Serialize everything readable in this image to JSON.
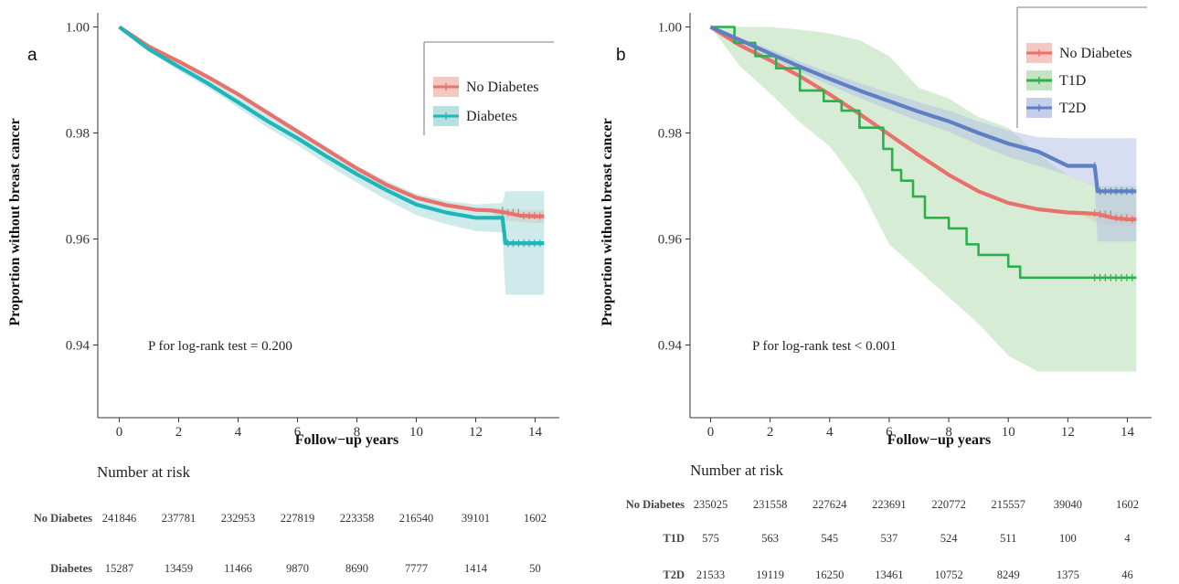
{
  "colors": {
    "no_diabetes": "#E8716B",
    "no_diabetes_band": "#F2B9B2",
    "diabetes": "#1FB6B8",
    "diabetes_band": "#A7D8D9",
    "t1d": "#2DB04B",
    "t1d_band": "#B4DDB0",
    "t2d": "#5E7FC4",
    "t2d_band": "#B6C3E6"
  },
  "chart_data": [
    {
      "type": "line",
      "panel_label": "a",
      "xlabel": "Follow−up years",
      "ylabel": "Proportion without breast cancer",
      "xlim": [
        -0.6,
        15.6
      ],
      "ylim": [
        0.9318,
        1.0025
      ],
      "xticks": [
        0,
        2,
        4,
        6,
        8,
        10,
        12,
        14
      ],
      "xtick_labels": [
        "0",
        "2",
        "4",
        "6",
        "8",
        "10",
        "12",
        "14"
      ],
      "yticks": [
        0.94,
        0.96,
        0.98,
        1.0
      ],
      "ytick_labels": [
        "0.94",
        "0.96",
        "0.98",
        "1.00"
      ],
      "annotation": "P for log-rank test = 0.200",
      "legend_position": "top-right",
      "series": [
        {
          "name": "No Diabetes",
          "color_key": "no_diabetes",
          "x": [
            0,
            1,
            2,
            3,
            4,
            5,
            6,
            7,
            8,
            9,
            10,
            11,
            12,
            12.5,
            13,
            13.5,
            14,
            14.3
          ],
          "y": [
            1.0,
            0.9963,
            0.9935,
            0.9905,
            0.9873,
            0.9838,
            0.9803,
            0.9768,
            0.9733,
            0.9702,
            0.9678,
            0.9664,
            0.9655,
            0.9654,
            0.965,
            0.9644,
            0.9643,
            0.9643
          ],
          "band_upper": [
            1.0,
            0.9965,
            0.9937,
            0.9907,
            0.9876,
            0.9841,
            0.9806,
            0.9771,
            0.9736,
            0.9705,
            0.9681,
            0.9667,
            0.9658,
            0.9658,
            0.9657,
            0.9655,
            0.9655,
            0.9655
          ],
          "band_lower": [
            1.0,
            0.9961,
            0.9933,
            0.9903,
            0.987,
            0.9835,
            0.98,
            0.9765,
            0.973,
            0.9699,
            0.9675,
            0.9661,
            0.9652,
            0.965,
            0.9635,
            0.9632,
            0.963,
            0.963
          ]
        },
        {
          "name": "Diabetes",
          "color_key": "diabetes",
          "x": [
            0,
            1,
            2,
            3,
            4,
            5,
            6,
            7,
            8,
            9,
            10,
            11,
            12,
            12.9,
            13.0,
            14.3
          ],
          "y": [
            1.0,
            0.9958,
            0.9925,
            0.9893,
            0.9858,
            0.9822,
            0.979,
            0.9755,
            0.9722,
            0.9692,
            0.9665,
            0.965,
            0.964,
            0.964,
            0.9592,
            0.9592
          ],
          "band_upper": [
            1.0,
            0.9962,
            0.9932,
            0.9901,
            0.9868,
            0.9834,
            0.9803,
            0.977,
            0.9738,
            0.971,
            0.9685,
            0.9672,
            0.9665,
            0.9668,
            0.969,
            0.969
          ],
          "band_lower": [
            1.0,
            0.9954,
            0.9918,
            0.9885,
            0.9848,
            0.981,
            0.9777,
            0.974,
            0.9706,
            0.9674,
            0.9645,
            0.9628,
            0.9615,
            0.9612,
            0.9495,
            0.9495
          ]
        }
      ],
      "risk_table": {
        "title": "Number at risk",
        "rows": [
          {
            "label": "No Diabetes",
            "values": [
              "241846",
              "237781",
              "232953",
              "227819",
              "223358",
              "216540",
              "39101",
              "1602"
            ]
          },
          {
            "label": "Diabetes",
            "values": [
              "15287",
              "13459",
              "11466",
              "9870",
              "8690",
              "7777",
              "1414",
              "50"
            ]
          }
        ]
      }
    },
    {
      "type": "line",
      "panel_label": "b",
      "xlabel": "Follow−up years",
      "ylabel": "Proportion without breast cancer",
      "xlim": [
        -0.6,
        15.6
      ],
      "ylim": [
        0.9318,
        1.0025
      ],
      "xticks": [
        0,
        2,
        4,
        6,
        8,
        10,
        12,
        14
      ],
      "xtick_labels": [
        "0",
        "2",
        "4",
        "6",
        "8",
        "10",
        "12",
        "14"
      ],
      "yticks": [
        0.94,
        0.96,
        0.98,
        1.0
      ],
      "ytick_labels": [
        "0.94",
        "0.96",
        "0.98",
        "1.00"
      ],
      "annotation": "P for log-rank test < 0.001",
      "legend_position": "top-right",
      "series": [
        {
          "name": "No Diabetes",
          "color_key": "no_diabetes",
          "x": [
            0,
            1,
            2,
            3,
            4,
            5,
            6,
            7,
            8,
            9,
            10,
            11,
            12,
            12.5,
            13,
            13.5,
            14,
            14.3
          ],
          "y": [
            1.0,
            0.9965,
            0.9937,
            0.9907,
            0.9873,
            0.9836,
            0.9797,
            0.9758,
            0.9721,
            0.969,
            0.9668,
            0.9656,
            0.965,
            0.9649,
            0.9647,
            0.964,
            0.9637,
            0.9637
          ],
          "band_upper": [
            1.0,
            0.9967,
            0.9939,
            0.9909,
            0.9876,
            0.9839,
            0.98,
            0.9761,
            0.9724,
            0.9693,
            0.9671,
            0.9659,
            0.9653,
            0.9653,
            0.9652,
            0.9651,
            0.965,
            0.965
          ],
          "band_lower": [
            1.0,
            0.9963,
            0.9935,
            0.9905,
            0.987,
            0.9833,
            0.9794,
            0.9755,
            0.9718,
            0.9687,
            0.9665,
            0.9653,
            0.9647,
            0.9645,
            0.963,
            0.9626,
            0.9624,
            0.9624
          ]
        },
        {
          "name": "T1D",
          "color_key": "t1d",
          "x": [
            0,
            0.8,
            0.8,
            1.5,
            1.5,
            2.2,
            2.2,
            3.0,
            3.0,
            3.8,
            3.8,
            4.4,
            4.4,
            5.0,
            5.0,
            5.8,
            5.8,
            6.1,
            6.1,
            6.4,
            6.4,
            6.8,
            6.8,
            7.2,
            7.2,
            8.0,
            8.0,
            8.6,
            8.6,
            9.0,
            9.0,
            10.0,
            10.0,
            10.4,
            10.4,
            14.3
          ],
          "y": [
            1.0,
            1.0,
            0.997,
            0.997,
            0.9945,
            0.9945,
            0.9922,
            0.9922,
            0.988,
            0.988,
            0.986,
            0.986,
            0.9842,
            0.9842,
            0.981,
            0.981,
            0.977,
            0.977,
            0.973,
            0.973,
            0.971,
            0.971,
            0.968,
            0.968,
            0.964,
            0.964,
            0.962,
            0.962,
            0.959,
            0.959,
            0.957,
            0.957,
            0.9548,
            0.9548,
            0.9527,
            0.9527
          ],
          "band_x": [
            0,
            1,
            2,
            3,
            4,
            5,
            6,
            7,
            8,
            9,
            10,
            11,
            12,
            13,
            14.3
          ],
          "band_upper": [
            1.0,
            1.0,
            1.0,
            0.9995,
            0.9988,
            0.9975,
            0.9945,
            0.9885,
            0.9865,
            0.983,
            0.981,
            0.976,
            0.972,
            0.97,
            0.97
          ],
          "band_lower": [
            1.0,
            0.9925,
            0.9875,
            0.982,
            0.9775,
            0.97,
            0.959,
            0.954,
            0.949,
            0.944,
            0.938,
            0.935,
            0.935,
            0.935,
            0.935
          ]
        },
        {
          "name": "T2D",
          "color_key": "t2d",
          "x": [
            0,
            1,
            2,
            3,
            4,
            5,
            6,
            7,
            8,
            9,
            10,
            11,
            12,
            12.9,
            13.0,
            14.3
          ],
          "y": [
            1.0,
            0.9975,
            0.995,
            0.9925,
            0.9902,
            0.988,
            0.986,
            0.984,
            0.9822,
            0.98,
            0.978,
            0.9765,
            0.9738,
            0.9738,
            0.969,
            0.969
          ],
          "band_upper": [
            1.0,
            0.998,
            0.9958,
            0.9935,
            0.9914,
            0.9894,
            0.9876,
            0.9858,
            0.9842,
            0.9822,
            0.9805,
            0.9792,
            0.979,
            0.979,
            0.979,
            0.979
          ],
          "band_lower": [
            1.0,
            0.997,
            0.9942,
            0.9915,
            0.989,
            0.9866,
            0.9844,
            0.9822,
            0.9802,
            0.9778,
            0.9755,
            0.9738,
            0.972,
            0.97,
            0.9595,
            0.9595
          ]
        }
      ],
      "risk_table": {
        "title": "Number at risk",
        "rows": [
          {
            "label": "No Diabetes",
            "values": [
              "235025",
              "231558",
              "227624",
              "223691",
              "220772",
              "215557",
              "39040",
              "1602"
            ]
          },
          {
            "label": "T1D",
            "values": [
              "575",
              "563",
              "545",
              "537",
              "524",
              "511",
              "100",
              "4"
            ]
          },
          {
            "label": "T2D",
            "values": [
              "21533",
              "19119",
              "16250",
              "13461",
              "10752",
              "8249",
              "1375",
              "46"
            ]
          }
        ]
      }
    }
  ]
}
